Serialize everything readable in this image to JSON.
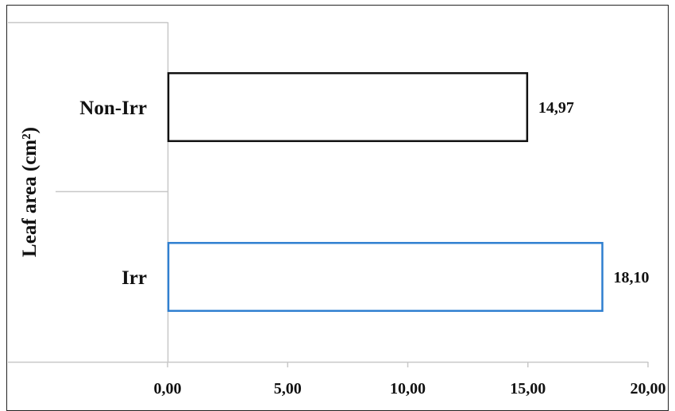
{
  "chart_data": {
    "type": "bar",
    "orientation": "horizontal",
    "categories": [
      "Non-Irr",
      "Irr"
    ],
    "values": [
      14.97,
      18.1
    ],
    "data_labels": [
      "14,97",
      "18,10"
    ],
    "title": "",
    "xlabel": "",
    "ylabel": "Leaf area (cm²)",
    "xlim": [
      0,
      20
    ],
    "x_ticks": [
      0,
      5,
      10,
      15,
      20
    ],
    "x_tick_labels": [
      "0,00",
      "5,00",
      "10,00",
      "15,00",
      "20,00"
    ],
    "grid": false,
    "legend": "none",
    "colors": {
      "Non-Irr": {
        "fill": "#ffffff",
        "stroke": "#111111"
      },
      "Irr": {
        "fill": "#ffffff",
        "stroke": "#2f7fd0"
      }
    }
  }
}
